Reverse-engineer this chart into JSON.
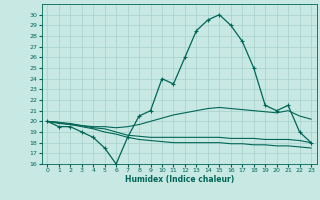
{
  "title": "",
  "xlabel": "Humidex (Indice chaleur)",
  "ylabel": "",
  "xlim": [
    -0.5,
    23.5
  ],
  "ylim": [
    16,
    31
  ],
  "yticks": [
    16,
    17,
    18,
    19,
    20,
    21,
    22,
    23,
    24,
    25,
    26,
    27,
    28,
    29,
    30
  ],
  "xticks": [
    0,
    1,
    2,
    3,
    4,
    5,
    6,
    7,
    8,
    9,
    10,
    11,
    12,
    13,
    14,
    15,
    16,
    17,
    18,
    19,
    20,
    21,
    22,
    23
  ],
  "bg_color": "#c8e8e4",
  "grid_color": "#a8d0cc",
  "line_color": "#006655",
  "lines": [
    {
      "x": [
        0,
        1,
        2,
        3,
        4,
        5,
        6,
        7,
        8,
        9,
        10,
        11,
        12,
        13,
        14,
        15,
        16,
        17,
        18,
        19,
        20,
        21,
        22,
        23
      ],
      "y": [
        20,
        19.5,
        19.5,
        19,
        18.5,
        17.5,
        16,
        18.5,
        20.5,
        21,
        24,
        23.5,
        26,
        28.5,
        29.5,
        30,
        29,
        27.5,
        25,
        21.5,
        21,
        21.5,
        19,
        18
      ],
      "marker": "+"
    },
    {
      "x": [
        0,
        1,
        2,
        3,
        4,
        5,
        6,
        7,
        8,
        9,
        10,
        11,
        12,
        13,
        14,
        15,
        16,
        17,
        18,
        19,
        20,
        21,
        22,
        23
      ],
      "y": [
        20,
        19.8,
        19.7,
        19.6,
        19.5,
        19.5,
        19.4,
        19.5,
        19.7,
        20.0,
        20.3,
        20.6,
        20.8,
        21.0,
        21.2,
        21.3,
        21.2,
        21.1,
        21.0,
        20.9,
        20.8,
        21.0,
        20.5,
        20.2
      ],
      "marker": null
    },
    {
      "x": [
        0,
        1,
        2,
        3,
        4,
        5,
        6,
        7,
        8,
        9,
        10,
        11,
        12,
        13,
        14,
        15,
        16,
        17,
        18,
        19,
        20,
        21,
        22,
        23
      ],
      "y": [
        20,
        19.9,
        19.8,
        19.6,
        19.4,
        19.3,
        19.0,
        18.7,
        18.6,
        18.5,
        18.5,
        18.5,
        18.5,
        18.5,
        18.5,
        18.5,
        18.4,
        18.4,
        18.4,
        18.3,
        18.3,
        18.3,
        18.2,
        18.0
      ],
      "marker": null
    },
    {
      "x": [
        0,
        1,
        2,
        3,
        4,
        5,
        6,
        7,
        8,
        9,
        10,
        11,
        12,
        13,
        14,
        15,
        16,
        17,
        18,
        19,
        20,
        21,
        22,
        23
      ],
      "y": [
        20,
        19.9,
        19.7,
        19.5,
        19.3,
        19.0,
        18.8,
        18.5,
        18.3,
        18.2,
        18.1,
        18.0,
        18.0,
        18.0,
        18.0,
        18.0,
        17.9,
        17.9,
        17.8,
        17.8,
        17.7,
        17.7,
        17.6,
        17.5
      ],
      "marker": null
    }
  ]
}
